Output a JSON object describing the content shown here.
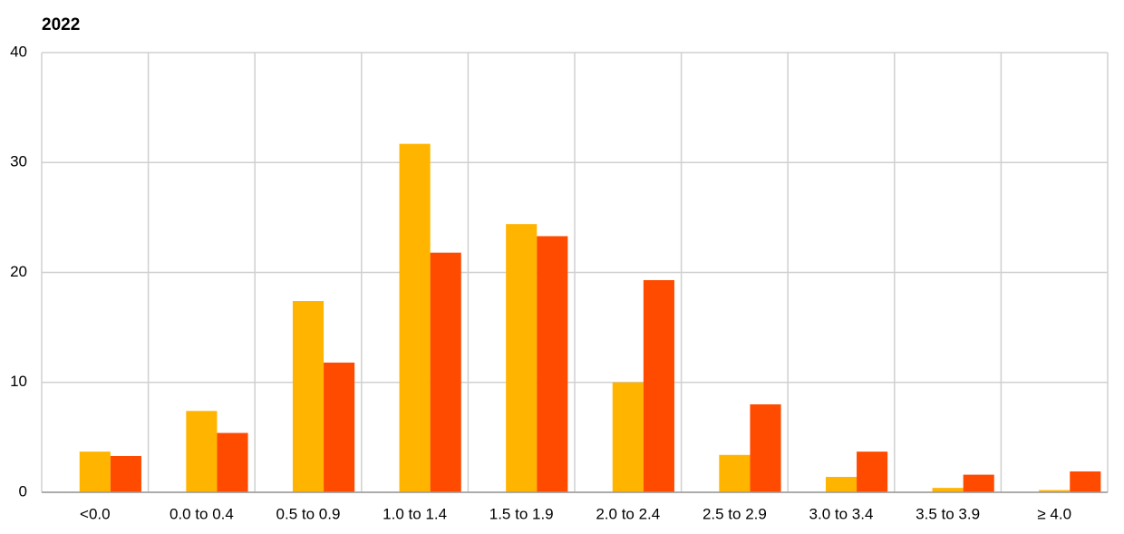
{
  "chart_data": {
    "type": "bar",
    "title": "2022",
    "categories": [
      "<0.0",
      "0.0 to 0.4",
      "0.5 to 0.9",
      "1.0 to 1.4",
      "1.5 to 1.9",
      "2.0 to 2.4",
      "2.5 to 2.9",
      "3.0 to 3.4",
      "3.5 to 3.9",
      "≥ 4.0"
    ],
    "series": [
      {
        "color": "#ffb400",
        "values": [
          3.7,
          7.4,
          17.4,
          31.7,
          24.4,
          10.0,
          3.4,
          1.4,
          0.4,
          0.2
        ]
      },
      {
        "color": "#ff4b00",
        "values": [
          3.3,
          5.4,
          11.8,
          21.8,
          23.3,
          19.3,
          8.0,
          3.7,
          1.6,
          1.9
        ]
      }
    ],
    "ylim": [
      0,
      40
    ],
    "yticks": [
      0,
      10,
      20,
      30,
      40
    ],
    "grid": true
  }
}
